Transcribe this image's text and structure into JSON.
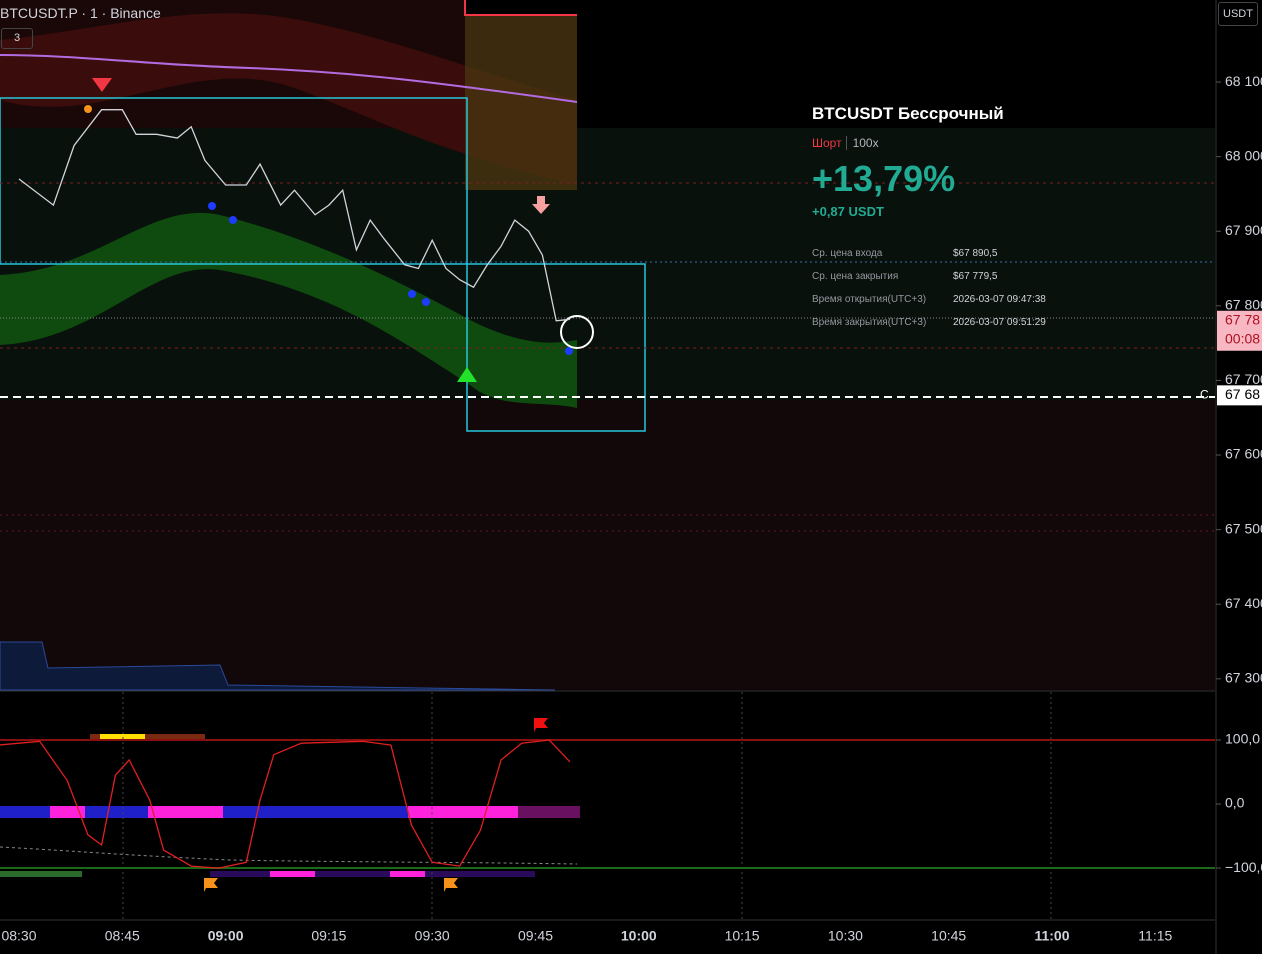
{
  "header": {
    "symbol": "BTCUSDT.P · 1 · Binance",
    "interval_badge": "3",
    "currency": "USDT"
  },
  "trade_card": {
    "title": "BTCUSDT Бессрочный",
    "side": "Шорт",
    "leverage": "100x",
    "pnl_percent": "+13,79%",
    "pnl_usdt": "+0,87 USDT",
    "rows": [
      [
        "Ср. цена входа",
        "$67 890,5"
      ],
      [
        "Ср. цена закрытия",
        "$67 779,5"
      ],
      [
        "Время открытия(UTC+3)",
        "2026-03-07 09:47:38"
      ],
      [
        "Время закрытия(UTC+3)",
        "2026-03-07 09:51:29"
      ]
    ]
  },
  "chart_data": [
    {
      "type": "line",
      "color": "#d1d4dc",
      "x": [
        "08:30",
        "08:35",
        "08:38",
        "08:42",
        "08:45",
        "08:47",
        "08:50",
        "08:53",
        "08:55",
        "08:57",
        "09:00",
        "09:03",
        "09:05",
        "09:08",
        "09:10",
        "09:13",
        "09:15",
        "09:17",
        "09:19",
        "09:21",
        "09:23",
        "09:26",
        "09:28",
        "09:30",
        "09:32",
        "09:34",
        "09:36",
        "09:38",
        "09:40",
        "09:42",
        "09:44",
        "09:46",
        "09:48",
        "09:50"
      ],
      "values": [
        67970,
        67935,
        68015,
        68063,
        68063,
        68030,
        68030,
        68025,
        68040,
        67995,
        67962,
        67962,
        67990,
        67935,
        67955,
        67922,
        67935,
        67955,
        67875,
        67915,
        67890,
        67855,
        67850,
        67888,
        67850,
        67835,
        67825,
        67855,
        67880,
        67915,
        67900,
        67868,
        67780,
        67782
      ],
      "ylim": [
        67285,
        68210
      ],
      "yticks": [
        {
          "value": 68100,
          "label": "68 100"
        },
        {
          "value": 68000,
          "label": "68 000"
        },
        {
          "value": 67900,
          "label": "67 900"
        },
        {
          "value": 67800,
          "label": "67 800"
        },
        {
          "value": 67700,
          "label": "67 700"
        },
        {
          "value": 67600,
          "label": "67 600"
        },
        {
          "value": 67500,
          "label": "67 500"
        },
        {
          "value": 67400,
          "label": "67 400"
        },
        {
          "value": 67300,
          "label": "67 300"
        }
      ],
      "xticks": [
        "08:30",
        "08:45",
        "09:00",
        "09:15",
        "09:30",
        "09:45",
        "10:00",
        "10:15",
        "10:30",
        "10:45",
        "11:00",
        "11:15"
      ],
      "last_price": {
        "value": 67780,
        "label": "67 78",
        "countdown": "00:08"
      },
      "close_price": {
        "value": 67680,
        "label": "67 68",
        "marker": "C"
      }
    },
    {
      "type": "line",
      "color": "#e01f1f",
      "x": [
        "08:27",
        "08:33",
        "08:37",
        "08:40",
        "08:42",
        "08:44",
        "08:46",
        "08:49",
        "08:51",
        "08:55",
        "08:59",
        "09:03",
        "09:05",
        "09:07",
        "09:11",
        "09:20",
        "09:24",
        "09:27",
        "09:30",
        "09:34",
        "09:37",
        "09:40",
        "09:43",
        "09:47",
        "09:50"
      ],
      "values": [
        92,
        98,
        37,
        -48,
        -64,
        45,
        69,
        6,
        -72,
        -97,
        -100,
        -91,
        6,
        77,
        95,
        98,
        92,
        -33,
        -91,
        -97,
        -41,
        69,
        95,
        100,
        66
      ],
      "ylim": [
        -178,
        175
      ],
      "yticks": [
        {
          "value": 100,
          "label": "100,0"
        },
        {
          "value": 0,
          "label": "0,0"
        },
        {
          "value": -100,
          "label": "−100,0"
        }
      ]
    }
  ]
}
